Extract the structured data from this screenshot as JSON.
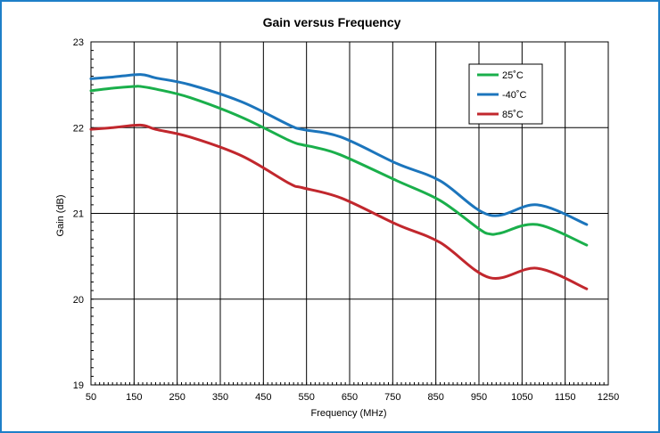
{
  "chart_data": {
    "type": "line",
    "title": "Gain versus Frequency",
    "xlabel": "Frequency (MHz)",
    "ylabel": "Gain (dB)",
    "xlim": [
      50,
      1250
    ],
    "ylim": [
      19,
      23
    ],
    "xticks": [
      50,
      150,
      250,
      350,
      450,
      550,
      650,
      750,
      850,
      950,
      1050,
      1150,
      1250
    ],
    "yticks": [
      19,
      20,
      21,
      22,
      23
    ],
    "grid": true,
    "legend_position": "top-right",
    "series": [
      {
        "name": "25˚C",
        "color": "#1aaf4b",
        "x": [
          50,
          100,
          150,
          165,
          200,
          280,
          400,
          510,
          540,
          570,
          630,
          760,
          860,
          950,
          975,
          1000,
          1085,
          1200
        ],
        "y": [
          22.43,
          22.46,
          22.48,
          22.48,
          22.45,
          22.35,
          22.12,
          21.85,
          21.8,
          21.77,
          21.68,
          21.38,
          21.15,
          20.82,
          20.76,
          20.77,
          20.87,
          20.63
        ]
      },
      {
        "name": "-40˚C",
        "color": "#1c75bc",
        "x": [
          50,
          100,
          165,
          200,
          280,
          400,
          510,
          540,
          630,
          760,
          860,
          975,
          1085,
          1200
        ],
        "y": [
          22.57,
          22.59,
          22.62,
          22.58,
          22.5,
          22.3,
          22.03,
          21.98,
          21.89,
          21.58,
          21.38,
          20.98,
          21.1,
          20.87
        ]
      },
      {
        "name": "85˚C",
        "color": "#c1272d",
        "x": [
          50,
          100,
          165,
          200,
          280,
          400,
          510,
          540,
          630,
          760,
          860,
          975,
          1085,
          1200
        ],
        "y": [
          21.98,
          22.0,
          22.03,
          21.98,
          21.89,
          21.67,
          21.35,
          21.3,
          21.18,
          20.87,
          20.66,
          20.25,
          20.36,
          20.12
        ]
      }
    ]
  }
}
